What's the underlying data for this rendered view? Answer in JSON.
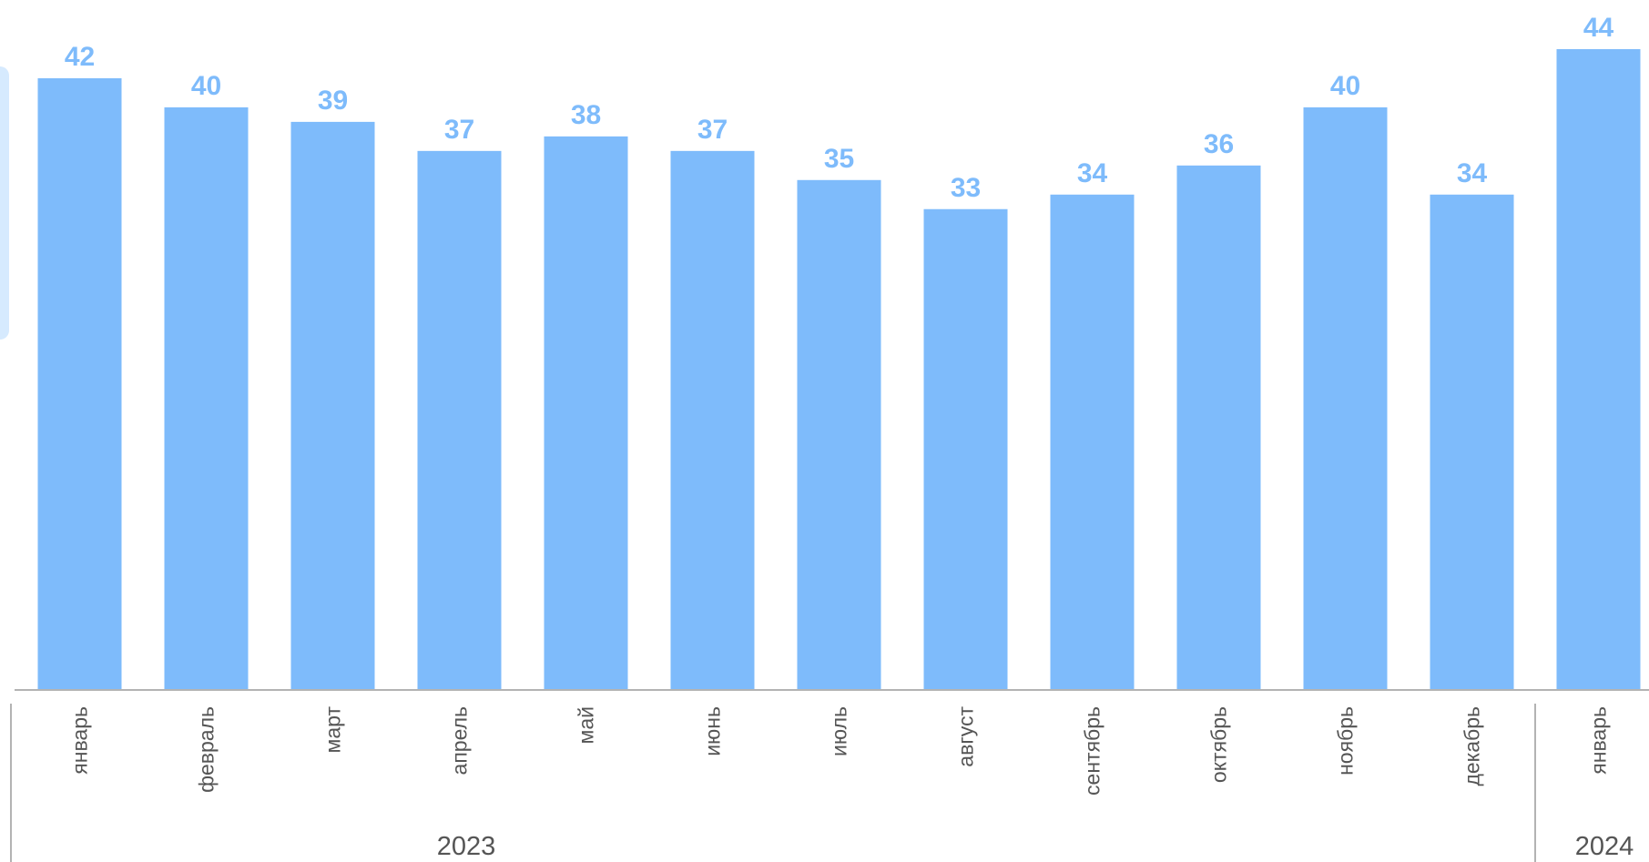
{
  "chart_data": {
    "type": "bar",
    "title": "",
    "xlabel": "",
    "ylabel": "",
    "categories": [
      "январь",
      "февраль",
      "март",
      "апрель",
      "май",
      "июнь",
      "июль",
      "август",
      "сентябрь",
      "октябрь",
      "ноябрь",
      "декабрь",
      "январь"
    ],
    "values": [
      42,
      40,
      39,
      37,
      38,
      37,
      35,
      33,
      34,
      36,
      40,
      34,
      44
    ],
    "groups": [
      {
        "label": "2023",
        "start": 0,
        "end": 11
      },
      {
        "label": "2024",
        "start": 12,
        "end": 12
      }
    ],
    "ylim": [
      0,
      44
    ],
    "grid": false,
    "data_labels": true,
    "bar_color": "#7ebbfb",
    "label_color": "#7ebbfb",
    "axis_color": "#b3b3b3",
    "text_color": "#555555",
    "panel_color": "#d6eafe"
  }
}
